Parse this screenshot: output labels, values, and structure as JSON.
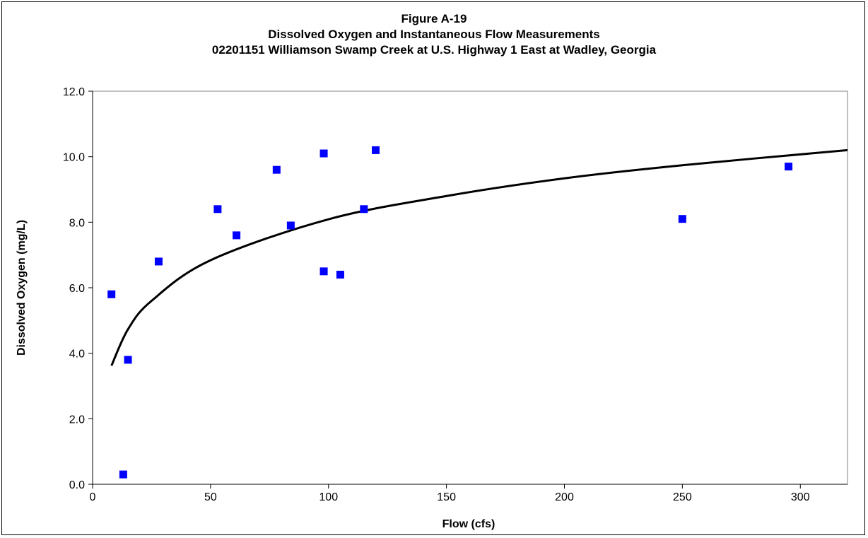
{
  "chart_data": {
    "type": "scatter",
    "title_lines": [
      "Figure A-19",
      "Dissolved Oxygen and Instantaneous Flow Measurements",
      "02201151 Williamson Swamp Creek at U.S. Highway 1 East at Wadley, Georgia"
    ],
    "xlabel": "Flow (cfs)",
    "ylabel": "Dissolved Oxygen (mg/L)",
    "xlim": [
      0,
      320
    ],
    "ylim": [
      0,
      12
    ],
    "x_ticks": [
      0,
      50,
      100,
      150,
      200,
      250,
      300
    ],
    "y_ticks": [
      "0.0",
      "2.0",
      "4.0",
      "6.0",
      "8.0",
      "10.0",
      "12.0"
    ],
    "grid": false,
    "legend": "none",
    "marker_color": "#0000FF",
    "trendline_color": "#000000",
    "series": [
      {
        "points": [
          {
            "x": 8,
            "y": 5.8
          },
          {
            "x": 13,
            "y": 0.3
          },
          {
            "x": 15,
            "y": 3.8
          },
          {
            "x": 28,
            "y": 6.8
          },
          {
            "x": 53,
            "y": 8.4
          },
          {
            "x": 61,
            "y": 7.6
          },
          {
            "x": 78,
            "y": 9.6
          },
          {
            "x": 84,
            "y": 7.9
          },
          {
            "x": 98,
            "y": 10.1
          },
          {
            "x": 98,
            "y": 6.5
          },
          {
            "x": 105,
            "y": 6.4
          },
          {
            "x": 115,
            "y": 8.4
          },
          {
            "x": 120,
            "y": 10.2
          },
          {
            "x": 250,
            "y": 8.1
          },
          {
            "x": 295,
            "y": 9.7
          }
        ]
      }
    ],
    "trendline": {
      "type": "logarithmic",
      "points": [
        {
          "x": 8,
          "y": 3.62
        },
        {
          "x": 15,
          "y": 4.73
        },
        {
          "x": 25,
          "y": 5.6
        },
        {
          "x": 50,
          "y": 6.84
        },
        {
          "x": 100,
          "y": 8.09
        },
        {
          "x": 150,
          "y": 8.8
        },
        {
          "x": 200,
          "y": 9.34
        },
        {
          "x": 250,
          "y": 9.74
        },
        {
          "x": 320,
          "y": 10.2
        }
      ]
    }
  }
}
